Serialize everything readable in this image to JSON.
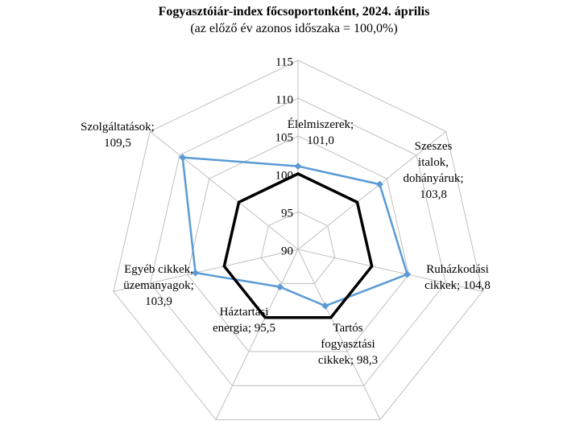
{
  "chart_data": {
    "type": "radar",
    "title": "Fogyasztóiár-index főcsoportonként, 2024. április",
    "subtitle": "(az előző év azonos időszaka = 100,0%)",
    "categories": [
      "Élelmiszerek;",
      "Szeszes italok, dohányáruk;",
      "Ruházkodási cikkek;",
      "Tartós fogyasztási cikkek;",
      "Háztartási energia;",
      "Egyéb cikkek, üzemanyagok;",
      "Szolgáltatások;"
    ],
    "series": [
      {
        "color": "#5b9bd5",
        "values": [
          101.0,
          103.8,
          104.8,
          98.3,
          95.5,
          103.9,
          109.5
        ],
        "value_labels": [
          "101,0",
          "103,8",
          "104,8",
          "98,3",
          "95,5",
          "103,9",
          "109,5"
        ]
      },
      {
        "color": "#000000",
        "values": [
          100,
          100,
          100,
          100,
          100,
          100,
          100
        ]
      }
    ],
    "ylim": [
      90,
      115
    ],
    "yticks": [
      90,
      95,
      100,
      105,
      110,
      115
    ],
    "grid": true
  }
}
